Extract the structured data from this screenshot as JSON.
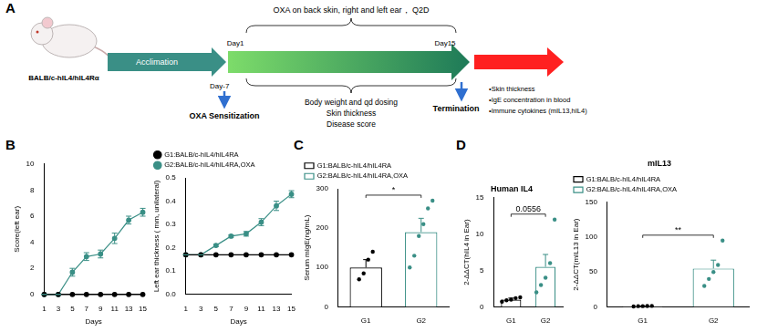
{
  "panel_labels": [
    "A",
    "B",
    "C",
    "D"
  ],
  "diagram": {
    "strain": "BALB/c-hIL4/hIL4Rα",
    "acclimation": "Acclimation",
    "sensitization_day": "Day-7",
    "sensitization": "OXA Sensitization",
    "start_day": "Day1",
    "end_day": "Day15",
    "treatment": "OXA on back skin, right and left ear， Q2D",
    "monitoring": [
      "Body weight and qd dosing",
      "Skin thickness",
      "Disease score"
    ],
    "termination": "Termination",
    "readouts": [
      "•Skin thickness",
      "•IgE concentration in blood",
      "•Immune cytokines (mIL13,hIL4)"
    ]
  },
  "chart_data": [
    {
      "type": "line",
      "x_label": "Days",
      "y_label": "Score(left ear)",
      "x": [
        1,
        3,
        5,
        7,
        9,
        11,
        13,
        15
      ],
      "series": [
        {
          "color": "#000000",
          "marker": "circle",
          "values": [
            0,
            0,
            0,
            0,
            0,
            0,
            0,
            0
          ]
        },
        {
          "color": "#3a8f86",
          "marker": "circle",
          "values": [
            0,
            0,
            1.7,
            2.9,
            3.1,
            4.3,
            5.7,
            6.3
          ],
          "errors": [
            0,
            0,
            0.3,
            0.3,
            0.3,
            0.4,
            0.3,
            0.3
          ]
        }
      ],
      "xlim": [
        1,
        15
      ],
      "xticks": [
        1,
        3,
        5,
        7,
        9,
        11,
        13,
        15
      ],
      "ylim": [
        0,
        10
      ],
      "yticks": [
        0,
        2,
        4,
        6,
        8,
        10
      ],
      "grid": false
    },
    {
      "type": "line",
      "x_label": "Days",
      "y_label": "Left ear thickness ( mm, unilateral)",
      "x": [
        1,
        3,
        5,
        7,
        9,
        11,
        13,
        15
      ],
      "series": [
        {
          "name": "G1:BALB/c-hIL4/hIL4RA",
          "color": "#000000",
          "marker": "circle",
          "values": [
            0.17,
            0.17,
            0.17,
            0.17,
            0.17,
            0.17,
            0.17,
            0.17
          ]
        },
        {
          "name": "G2:BALB/c-hIL4/hIL4RA,OXA",
          "color": "#3a8f86",
          "marker": "circle",
          "values": [
            0.17,
            0.17,
            0.21,
            0.25,
            0.26,
            0.31,
            0.38,
            0.43
          ],
          "errors": [
            0,
            0,
            0.005,
            0.005,
            0.01,
            0.015,
            0.02,
            0.015
          ]
        }
      ],
      "xlim": [
        1,
        15
      ],
      "xticks": [
        1,
        3,
        5,
        7,
        9,
        11,
        13,
        15
      ],
      "ylim": [
        0,
        0.5
      ],
      "yticks": [
        {
          "value": 0,
          "label": "0.0"
        },
        0.1,
        0.2,
        0.3,
        0.4,
        0.5
      ],
      "grid": false,
      "legend": "top"
    },
    {
      "type": "bar",
      "y_label": "Serum mIgE(ng/mL)",
      "categories": [
        "G1",
        "G2"
      ],
      "series": [
        {
          "name": "G1:BALB/c-hIL4/hIL4RA",
          "color": "#000000",
          "values": [
            100,
            null
          ],
          "errors": [
            20,
            null
          ],
          "points": [
            70,
            85,
            120,
            140
          ]
        },
        {
          "name": "G2:BALB/c-hIL4/hIL4RA,OXA",
          "color": "#3a8f86",
          "values": [
            null,
            190
          ],
          "errors": [
            null,
            35
          ],
          "points": [
            100,
            130,
            180,
            210,
            250,
            270
          ]
        }
      ],
      "ylim": [
        0,
        300
      ],
      "yticks": [
        0,
        100,
        200,
        300
      ],
      "grid": false,
      "legend": "top",
      "annotations": [
        {
          "text": "*",
          "between": [
            "G1",
            "G2"
          ]
        }
      ]
    },
    {
      "type": "bar",
      "title": "Human IL4",
      "y_label": "2-ΔΔCT(hIL4 in Ear)",
      "categories": [
        "G1",
        "G2"
      ],
      "series": [
        {
          "color": "#000000",
          "values": [
            1.0,
            null
          ],
          "errors": [
            0.2,
            null
          ],
          "points": [
            0.7,
            0.9,
            1.0,
            1.2,
            1.3
          ]
        },
        {
          "color": "#3a8f86",
          "values": [
            null,
            5.5
          ],
          "errors": [
            null,
            1.7
          ],
          "points": [
            2,
            3,
            4,
            6,
            12
          ]
        }
      ],
      "ylim": [
        0,
        15
      ],
      "yticks": [
        0,
        5,
        10,
        15
      ],
      "grid": false,
      "annotations": [
        {
          "text": "0.0556",
          "between": [
            "G1",
            "G2"
          ]
        }
      ]
    },
    {
      "type": "bar",
      "title": "mIL13",
      "y_label": "2-ΔΔCT(mIL13 in Ear)",
      "categories": [
        "G1",
        "G2"
      ],
      "series": [
        {
          "name": "G1:BALB/c-hIL4/hIL4RA",
          "color": "#000000",
          "values": [
            1,
            null
          ],
          "errors": [
            0.3,
            null
          ],
          "points": [
            0.5,
            1,
            1,
            1.2,
            1.3
          ]
        },
        {
          "name": "G2:BALB/c-hIL4/hIL4RA,OXA",
          "color": "#3a8f86",
          "values": [
            null,
            55
          ],
          "errors": [
            null,
            12
          ],
          "points": [
            30,
            40,
            50,
            60,
            95
          ]
        }
      ],
      "ylim": [
        0,
        150
      ],
      "yticks": [
        0,
        50,
        100,
        150
      ],
      "grid": false,
      "legend": "top",
      "annotations": [
        {
          "text": "**",
          "between": [
            "G1",
            "G2"
          ]
        }
      ]
    }
  ]
}
